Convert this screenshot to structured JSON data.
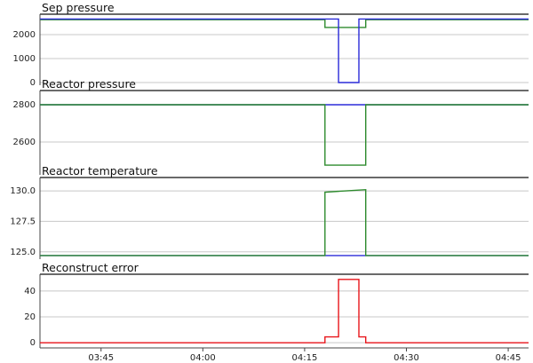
{
  "chart_data": [
    {
      "type": "line",
      "title": "Sep pressure",
      "x": [
        "03:36",
        "04:18",
        "04:18",
        "04:20",
        "04:20",
        "04:23",
        "04:23",
        "04:24",
        "04:24",
        "04:48"
      ],
      "series": [
        {
          "color": "#2e8b2e",
          "values": [
            2620,
            2620,
            2300,
            2300,
            2300,
            2300,
            2300,
            2300,
            2620,
            2620
          ]
        },
        {
          "color": "#2b2bd8",
          "values": [
            2650,
            2650,
            2650,
            2650,
            0,
            0,
            2650,
            2650,
            2650,
            2650
          ]
        }
      ],
      "xlim": [
        "03:36",
        "04:48"
      ],
      "ylim": [
        -110,
        2850
      ],
      "yticks": [
        0,
        1000,
        2000
      ],
      "grid": true
    },
    {
      "type": "line",
      "title": "Reactor pressure",
      "x": [
        "03:36",
        "04:18",
        "04:18",
        "04:24",
        "04:24",
        "04:48"
      ],
      "series": [
        {
          "color": "#2b2bd8",
          "values": [
            2800,
            2800,
            2800,
            2800,
            2800,
            2800
          ]
        },
        {
          "color": "#2e8b2e",
          "values": [
            2800,
            2800,
            2476,
            2476,
            2800,
            2800
          ]
        }
      ],
      "xlim": [
        "03:36",
        "04:48"
      ],
      "ylim": [
        2424,
        2876
      ],
      "yticks": [
        2600,
        2800
      ],
      "grid": true
    },
    {
      "type": "line",
      "title": "Reactor temperature",
      "x": [
        "03:36",
        "04:18",
        "04:18",
        "04:24",
        "04:24",
        "04:48"
      ],
      "series": [
        {
          "color": "#2b2bd8",
          "values": [
            124.7,
            124.7,
            124.7,
            124.7,
            124.7,
            124.7
          ]
        },
        {
          "color": "#2e8b2e",
          "values": [
            124.7,
            124.7,
            129.9,
            130.1,
            124.7,
            124.7
          ]
        }
      ],
      "xlim": [
        "03:36",
        "04:48"
      ],
      "ylim": [
        124.4,
        131.1
      ],
      "yticks": [
        {
          "value": 125,
          "label": "125.0"
        },
        {
          "value": 127.5,
          "label": "127.5"
        },
        {
          "value": 130,
          "label": "130.0"
        }
      ],
      "grid": true
    },
    {
      "type": "line",
      "title": "Reconstruct error",
      "x": [
        "03:36",
        "04:18",
        "04:18",
        "04:20",
        "04:20",
        "04:23",
        "04:23",
        "04:24",
        "04:24",
        "04:48"
      ],
      "series": [
        {
          "color": "#e8161b",
          "values": [
            0,
            0,
            4.5,
            4.5,
            49,
            49,
            4.5,
            4.5,
            0,
            0
          ]
        }
      ],
      "xlim": [
        "03:36",
        "04:48"
      ],
      "ylim": [
        -4,
        53
      ],
      "yticks": [
        0,
        20,
        40
      ],
      "xticks": [
        "03:45",
        "04:00",
        "04:15",
        "04:30",
        "04:45"
      ],
      "grid": true
    }
  ]
}
